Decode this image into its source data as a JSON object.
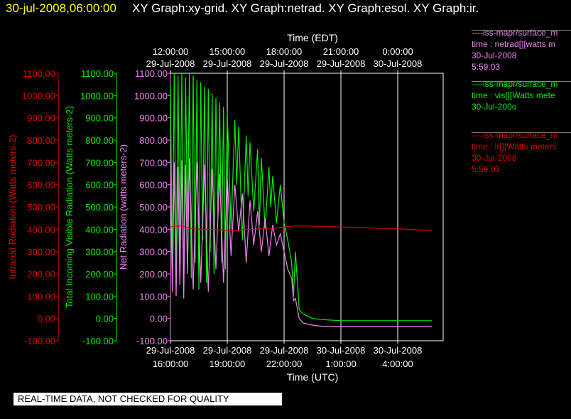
{
  "header": {
    "datetime": "30-jul-2008,06:00:00",
    "graphs": "XY Graph:xy-grid.  XY Graph:netrad.  XY Graph:esol.  XY Graph:ir."
  },
  "colors": {
    "background": "#000000",
    "infrared": "#dd0000",
    "visible": "#00ee00",
    "net": "#ee82ee",
    "grid": "#ffffff"
  },
  "legend": [
    {
      "name": "----iss-mapr/surface_m",
      "line1": "time : netrad[][watts m",
      "line2": "30-Jul-2008",
      "line3": "5:59:03",
      "color": "#ee82ee"
    },
    {
      "name": "----iss-mapr/surface_m",
      "line1": "time : vis[][Watts mete",
      "line2": "30-Jul-200o",
      "line3": "",
      "color": "#00ee00"
    },
    {
      "name": "----iss-mapr/surface_m",
      "line1": "time : ir[][Watts meters",
      "line2": "30-Jul-2008",
      "line3": "5:59:03",
      "color": "#dd0000"
    }
  ],
  "banner": "REAL-TIME DATA, NOT CHECKED FOR QUALITY",
  "chart_data": {
    "type": "line",
    "xlabel_top": "Time (EDT)",
    "xlabel_bottom": "Time (UTC)",
    "x_unit": "hours since 29-Jul-2008 16:00 UTC",
    "xlim": [
      0,
      13.8
    ],
    "top_ticks": [
      {
        "x": 0,
        "time": "12:00:00",
        "date": "29-Jul-2008"
      },
      {
        "x": 3,
        "time": "15:00:00",
        "date": "29-Jul-2008"
      },
      {
        "x": 6,
        "time": "18:00:00",
        "date": "29-Jul-2008"
      },
      {
        "x": 9,
        "time": "21:00:00",
        "date": "29-Jul-2008"
      },
      {
        "x": 12,
        "time": "0:00:00",
        "date": "30-Jul-2008"
      }
    ],
    "bottom_ticks": [
      {
        "x": 0,
        "date": "29-Jul-2008",
        "time": "16:00:00"
      },
      {
        "x": 3,
        "date": "29-Jul-2008",
        "time": "19:00:00"
      },
      {
        "x": 6,
        "date": "29-Jul-2008",
        "time": "22:00:00"
      },
      {
        "x": 9,
        "date": "30-Jul-2008",
        "time": "1:00:00"
      },
      {
        "x": 12,
        "date": "30-Jul-2008",
        "time": "4:00:00"
      }
    ],
    "ylim": [
      -100,
      1100
    ],
    "yticks": [
      "1100.00",
      "1000.00",
      "900.00",
      "800.00",
      "700.00",
      "600.00",
      "500.00",
      "400.00",
      "300.00",
      "200.00",
      "100.00",
      "0.00",
      "-100.00"
    ],
    "axes": [
      {
        "label": "Infrared Radiation (Watts meters-2)",
        "color": "#dd0000"
      },
      {
        "label": "Total Incoming Visible Radiation (Watts meters-2)",
        "color": "#00ee00"
      },
      {
        "label": "Net Radiation (watts meters-2)",
        "color": "#ee82ee"
      }
    ],
    "series": [
      {
        "name": "Total Incoming Visible Radiation",
        "color": "#00ee00",
        "x": [
          0,
          0.1,
          0.2,
          0.3,
          0.4,
          0.5,
          0.6,
          0.7,
          0.8,
          0.9,
          1.0,
          1.1,
          1.2,
          1.3,
          1.4,
          1.5,
          1.6,
          1.7,
          1.8,
          1.9,
          2.0,
          2.1,
          2.2,
          2.3,
          2.4,
          2.5,
          2.6,
          2.7,
          2.8,
          2.9,
          3.0,
          3.2,
          3.4,
          3.5,
          3.6,
          3.8,
          4.0,
          4.1,
          4.2,
          4.4,
          4.6,
          4.7,
          4.8,
          5.0,
          5.2,
          5.3,
          5.4,
          5.6,
          5.8,
          6.0,
          6.2,
          6.4,
          6.5,
          6.6,
          6.8,
          7.0,
          7.5,
          8.0,
          9.0,
          10.0,
          11.0,
          12.0,
          13.0,
          13.8
        ],
        "y": [
          1050,
          200,
          1100,
          150,
          1090,
          300,
          1100,
          120,
          1080,
          400,
          1100,
          180,
          1090,
          250,
          1070,
          130,
          1060,
          350,
          1040,
          160,
          1030,
          300,
          1010,
          200,
          990,
          450,
          970,
          250,
          950,
          220,
          930,
          400,
          890,
          600,
          860,
          350,
          820,
          550,
          790,
          480,
          760,
          420,
          720,
          400,
          680,
          500,
          640,
          430,
          600,
          430,
          350,
          250,
          100,
          300,
          40,
          20,
          0,
          -5,
          -10,
          -10,
          -10,
          -10,
          -10,
          -10
        ]
      },
      {
        "name": "Net Radiation",
        "color": "#ee82ee",
        "x": [
          0,
          0.1,
          0.2,
          0.3,
          0.4,
          0.5,
          0.6,
          0.7,
          0.8,
          0.9,
          1.0,
          1.2,
          1.4,
          1.6,
          1.8,
          2.0,
          2.2,
          2.4,
          2.6,
          2.8,
          3.0,
          3.2,
          3.4,
          3.6,
          3.8,
          4.0,
          4.2,
          4.4,
          4.6,
          4.8,
          5.0,
          5.2,
          5.4,
          5.6,
          5.8,
          6.0,
          6.2,
          6.4,
          6.5,
          6.6,
          6.8,
          7.0,
          7.5,
          8.0,
          9.0,
          10.0,
          11.0,
          12.0,
          13.0,
          13.8
        ],
        "y": [
          650,
          120,
          700,
          100,
          680,
          150,
          710,
          90,
          690,
          200,
          720,
          130,
          700,
          160,
          690,
          120,
          670,
          220,
          650,
          160,
          640,
          280,
          600,
          390,
          560,
          250,
          530,
          330,
          480,
          300,
          450,
          280,
          420,
          330,
          380,
          300,
          220,
          180,
          80,
          90,
          0,
          -20,
          -30,
          -35,
          -35,
          -35,
          -35,
          -35,
          -35,
          -35
        ]
      },
      {
        "name": "Infrared Radiation",
        "color": "#dd0000",
        "x": [
          0,
          0.5,
          1.0,
          1.5,
          2.0,
          2.5,
          3.0,
          3.5,
          4.0,
          4.5,
          5.0,
          5.5,
          6.0,
          6.5,
          7.0,
          8.0,
          9.0,
          10.0,
          11.0,
          12.0,
          13.0,
          13.8
        ],
        "y": [
          410,
          415,
          405,
          400,
          400,
          398,
          395,
          395,
          400,
          400,
          403,
          405,
          410,
          415,
          415,
          413,
          410,
          408,
          405,
          402,
          398,
          395
        ]
      }
    ]
  }
}
